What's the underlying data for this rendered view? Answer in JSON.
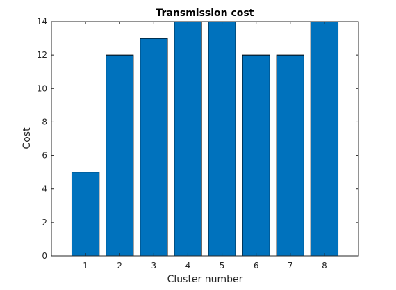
{
  "chart_data": {
    "type": "bar",
    "title": "Transmission cost",
    "xlabel": "Cluster number",
    "ylabel": "Cost",
    "categories": [
      "1",
      "2",
      "3",
      "4",
      "5",
      "6",
      "7",
      "8"
    ],
    "values": [
      5,
      12,
      13,
      14,
      14,
      12,
      12,
      14
    ],
    "ylim": [
      0,
      14
    ],
    "yticks": [
      "0",
      "2",
      "4",
      "6",
      "8",
      "10",
      "12",
      "14"
    ],
    "grid": false,
    "legend": "none",
    "colors": {
      "bar_fill": "#0072bd",
      "bar_stroke": "#000000",
      "axis": "#262626"
    }
  }
}
